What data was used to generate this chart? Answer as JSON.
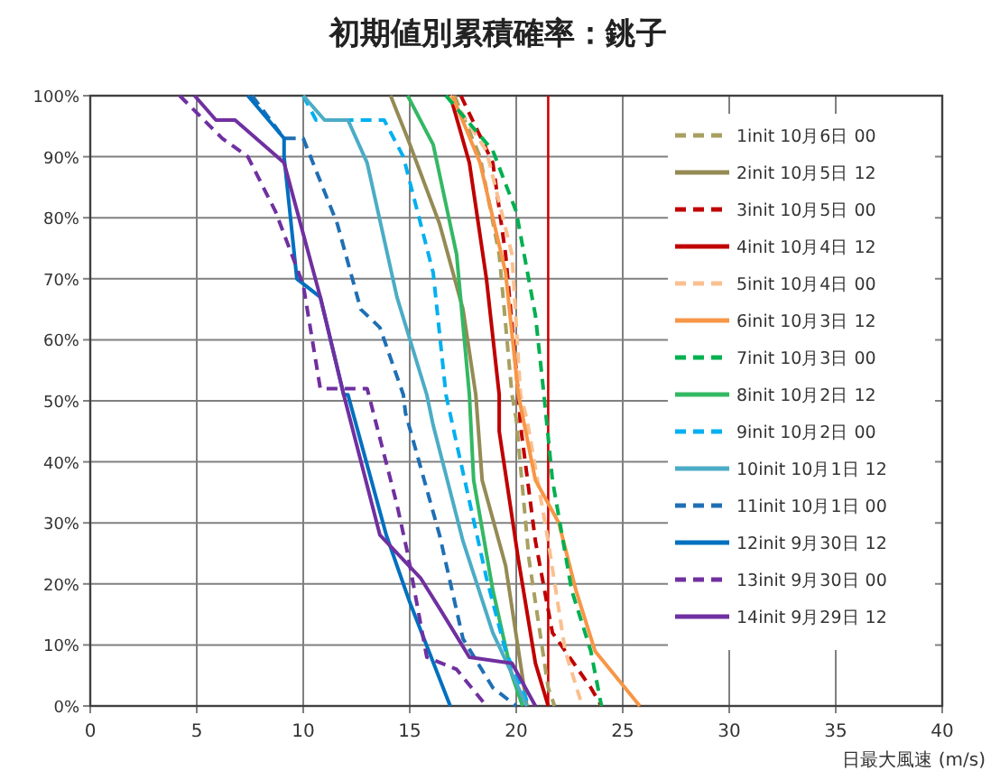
{
  "chart_data": {
    "type": "line",
    "title": "初期値別累積確率：銚子",
    "xlabel": "日最大風速 (m/s)",
    "xlim": [
      0,
      40
    ],
    "xticks": [
      0,
      5,
      10,
      15,
      20,
      25,
      30,
      35,
      40
    ],
    "ylim": [
      0,
      100
    ],
    "yticks": [
      {
        "value": 0,
        "label": "0%"
      },
      {
        "value": 10,
        "label": "10%"
      },
      {
        "value": 20,
        "label": "20%"
      },
      {
        "value": 30,
        "label": "30%"
      },
      {
        "value": 40,
        "label": "40%"
      },
      {
        "value": 50,
        "label": "50%"
      },
      {
        "value": 60,
        "label": "60%"
      },
      {
        "value": 70,
        "label": "70%"
      },
      {
        "value": 80,
        "label": "80%"
      },
      {
        "value": 90,
        "label": "90%"
      },
      {
        "value": 100,
        "label": "100%"
      }
    ],
    "grid": true,
    "legend": "top right",
    "ref_lines": [
      {
        "axis": "x",
        "value": 21.5,
        "color": "#d00000"
      }
    ],
    "series": [
      {
        "name": "1init 10月6日 00",
        "color": "#a8a060",
        "line_style": "dashed",
        "x": [
          17.1,
          18.3,
          19.2,
          19.8,
          20.0,
          20.6,
          21.5,
          21.8
        ],
        "values": [
          100,
          90,
          74,
          51,
          47,
          24,
          3,
          0
        ]
      },
      {
        "name": "2init 10月5日 12",
        "color": "#948a54",
        "line_style": "solid",
        "x": [
          14.1,
          14.9,
          16.4,
          17.5,
          18.1,
          18.4,
          19.5,
          20.5
        ],
        "values": [
          100,
          93,
          79,
          65,
          51,
          37,
          23,
          0
        ]
      },
      {
        "name": "3init 10月5日 00",
        "color": "#c00000",
        "line_style": "dashed",
        "x": [
          17.4,
          18.9,
          19.5,
          20.1,
          20.2,
          20.9,
          21.7,
          23.5,
          24.0
        ],
        "values": [
          100,
          89,
          74,
          51,
          46,
          27,
          12,
          3,
          0
        ]
      },
      {
        "name": "4init 10月4日 12",
        "color": "#c00000",
        "line_style": "solid",
        "x": [
          16.9,
          17.8,
          18.6,
          19.2,
          19.2,
          20.1,
          20.9,
          21.5
        ],
        "values": [
          100,
          89,
          70,
          51,
          45,
          24,
          7,
          0
        ]
      },
      {
        "name": "5init 10月4日 00",
        "color": "#fac090",
        "line_style": "dashed",
        "x": [
          16.9,
          18.6,
          19.8,
          20.2,
          20.5,
          21.5,
          22.3,
          23.1
        ],
        "values": [
          100,
          91,
          74,
          51,
          47,
          27,
          9,
          0
        ]
      },
      {
        "name": "6init 10月3日 12",
        "color": "#f79646",
        "line_style": "solid",
        "x": [
          17.0,
          18.3,
          19.5,
          20.1,
          20.9,
          22.0,
          22.8,
          23.7,
          25.8
        ],
        "values": [
          100,
          89,
          71,
          51,
          37,
          30,
          19,
          9,
          0
        ]
      },
      {
        "name": "7init 10月3日 00",
        "color": "#00b050",
        "line_style": "dashed",
        "x": [
          16.7,
          18.9,
          20.0,
          20.9,
          21.3,
          21.7,
          22.6,
          23.5,
          24.0
        ],
        "values": [
          100,
          91,
          81,
          64,
          51,
          37,
          19,
          9,
          0
        ]
      },
      {
        "name": "8init 10月2日 12",
        "color": "#33b864",
        "line_style": "solid",
        "x": [
          14.9,
          16.1,
          17.2,
          17.8,
          18.0,
          18.9,
          19.8,
          20.3
        ],
        "values": [
          100,
          92,
          74,
          51,
          37,
          19,
          5,
          0
        ]
      },
      {
        "name": "9init 10月2日 00",
        "color": "#00b0f0",
        "line_style": "dashed",
        "x": [
          10.0,
          10.6,
          13.8,
          14.7,
          16.1,
          16.7,
          17.2,
          18.6,
          19.5,
          20.6
        ],
        "values": [
          100,
          96,
          96,
          90,
          71,
          51,
          43,
          21,
          9,
          0
        ]
      },
      {
        "name": "10init 10月1日 12",
        "color": "#4bacc6",
        "line_style": "solid",
        "x": [
          10.0,
          11.0,
          12.1,
          13.0,
          14.4,
          15.8,
          16.1,
          17.5,
          18.9,
          20.5
        ],
        "values": [
          100,
          96,
          96,
          89,
          67,
          51,
          46,
          27,
          12,
          0
        ]
      },
      {
        "name": "11init 10月1日 00",
        "color": "#1f6fb4",
        "line_style": "dashed",
        "x": [
          7.6,
          9.1,
          10.0,
          11.6,
          12.7,
          13.6,
          14.7,
          14.8,
          16.4,
          17.5,
          18.9,
          20.0
        ],
        "values": [
          100,
          93,
          93,
          79,
          65,
          62,
          51,
          48,
          28,
          11,
          3,
          0
        ]
      },
      {
        "name": "12init 9月30日 12",
        "color": "#0070c0",
        "line_style": "solid",
        "x": [
          7.4,
          9.1,
          9.1,
          9.7,
          10.8,
          11.9,
          12.1,
          13.9,
          15.0,
          16.9
        ],
        "values": [
          100,
          93,
          90,
          70,
          67,
          51,
          51,
          28,
          17,
          0
        ]
      },
      {
        "name": "13init 9月30日 00",
        "color": "#7030a0",
        "line_style": "dashed",
        "x": [
          4.2,
          6.2,
          7.4,
          8.7,
          10.0,
          10.8,
          13.0,
          14.4,
          14.9,
          15.8,
          17.2,
          18.6
        ],
        "values": [
          100,
          93,
          90,
          81,
          69,
          52,
          52,
          33,
          25,
          8,
          6,
          0
        ]
      },
      {
        "name": "14init 9月29日 12",
        "color": "#7030a0",
        "line_style": "solid",
        "x": [
          4.9,
          5.9,
          6.8,
          9.1,
          10.8,
          11.9,
          13.6,
          15.5,
          16.4,
          17.8,
          19.8,
          20.9
        ],
        "values": [
          100,
          96,
          96,
          89,
          67,
          51,
          28,
          21,
          16,
          8,
          7,
          0
        ]
      }
    ]
  }
}
